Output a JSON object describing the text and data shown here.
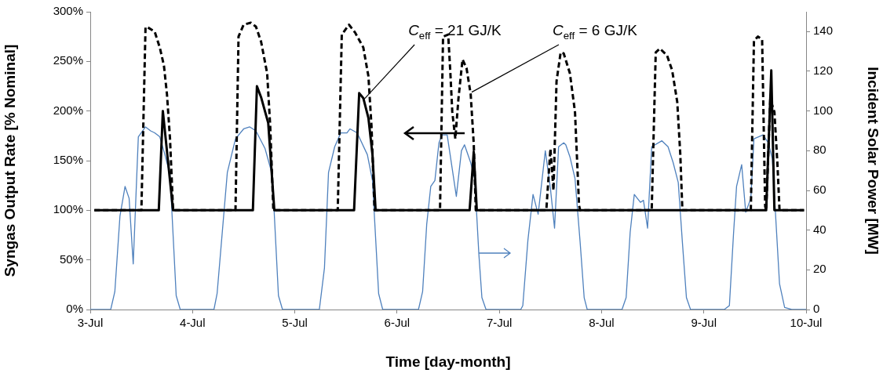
{
  "chart_data": {
    "type": "line",
    "xlabel": "Time [day-month]",
    "ylabel": "Syngas Output Rate [% Nominal]",
    "y2label": "Incident Solar Power [MW]",
    "xlim": [
      "--07-03",
      "--07-10"
    ],
    "xticks": [
      {
        "value": "--07-03",
        "label": "3-Jul"
      },
      {
        "value": "--07-04",
        "label": "4-Jul"
      },
      {
        "value": "--07-05",
        "label": "5-Jul"
      },
      {
        "value": "--07-06",
        "label": "6-Jul"
      },
      {
        "value": "--07-07",
        "label": "7-Jul"
      },
      {
        "value": "--07-08",
        "label": "8-Jul"
      },
      {
        "value": "--07-09",
        "label": "9-Jul"
      },
      {
        "value": "--07-10",
        "label": "10-Jul"
      }
    ],
    "ylim": [
      0,
      300
    ],
    "yticks": [
      {
        "value": 0,
        "label": "0%"
      },
      {
        "value": 50,
        "label": "50%"
      },
      {
        "value": 100,
        "label": "100%"
      },
      {
        "value": 150,
        "label": "150%"
      },
      {
        "value": 200,
        "label": "200%"
      },
      {
        "value": 250,
        "label": "250%"
      },
      {
        "value": 300,
        "label": "300%"
      }
    ],
    "y2lim": [
      0,
      150
    ],
    "y2ticks": [
      0,
      20,
      40,
      60,
      80,
      100,
      120,
      140
    ],
    "grid": false,
    "legend": false,
    "marker": "none",
    "series": [
      {
        "color": "#4f81bd",
        "axis": "y2",
        "line_style": "solid",
        "x": [
          "--07-03T00:00",
          "--07-03T04:48",
          "--07-03T05:46",
          "--07-03T06:58",
          "--07-03T08:10",
          "--07-03T09:07",
          "--07-03T10:05",
          "--07-03T11:17",
          "--07-03T12:58",
          "--07-03T14:10",
          "--07-03T15:07",
          "--07-03T16:19",
          "--07-03T17:31",
          "--07-03T18:43",
          "--07-03T20:10",
          "--07-03T21:07",
          "--07-04T05:02",
          "--07-04T05:46",
          "--07-04T08:10",
          "--07-04T10:05",
          "--07-04T12:00",
          "--07-04T13:26",
          "--07-04T14:53",
          "--07-04T17:02",
          "--07-04T18:43",
          "--07-04T20:10",
          "--07-04T21:07",
          "--07-05T05:46",
          "--07-05T06:58",
          "--07-05T07:55",
          "--07-05T09:22",
          "--07-05T10:48",
          "--07-05T12:14",
          "--07-05T12:58",
          "--07-05T14:38",
          "--07-05T17:02",
          "--07-05T18:14",
          "--07-05T19:41",
          "--07-05T20:38",
          "--07-06T05:02",
          "--07-06T06:00",
          "--07-06T06:58",
          "--07-06T07:55",
          "--07-06T08:53",
          "--07-06T09:50",
          "--07-06T10:34",
          "--07-06T11:46",
          "--07-06T13:55",
          "--07-06T15:07",
          "--07-06T15:50",
          "--07-06T17:17",
          "--07-06T18:14",
          "--07-06T19:12",
          "--07-06T19:55",
          "--07-06T20:53",
          "--07-07T05:02",
          "--07-07T05:31",
          "--07-07T06:43",
          "--07-07T07:55",
          "--07-07T09:07",
          "--07-07T10:48",
          "--07-07T12:00",
          "--07-07T12:58",
          "--07-07T13:55",
          "--07-07T15:07",
          "--07-07T15:36",
          "--07-07T16:34",
          "--07-07T17:46",
          "--07-07T18:58",
          "--07-07T19:55",
          "--07-07T20:38",
          "--07-08T04:48",
          "--07-08T05:46",
          "--07-08T06:43",
          "--07-08T07:41",
          "--07-08T09:07",
          "--07-08T09:50",
          "--07-08T10:48",
          "--07-08T11:46",
          "--07-08T14:10",
          "--07-08T15:36",
          "--07-08T16:48",
          "--07-08T18:00",
          "--07-08T18:58",
          "--07-08T19:55",
          "--07-08T20:53",
          "--07-09T04:48",
          "--07-09T06:00",
          "--07-09T06:58",
          "--07-09T07:41",
          "--07-09T08:53",
          "--07-09T09:50",
          "--07-09T11:02",
          "--07-09T11:46",
          "--07-09T13:55",
          "--07-09T15:07",
          "--07-09T16:05",
          "--07-09T17:46",
          "--07-09T18:58",
          "--07-09T20:38",
          "--07-10T00:00"
        ],
        "values": [
          0,
          0,
          9,
          47,
          62,
          56,
          23,
          87,
          92,
          90,
          89,
          87,
          78,
          68,
          7,
          0,
          0,
          8,
          69,
          86,
          91,
          92,
          90,
          81,
          68,
          7,
          0,
          0,
          21,
          69,
          82,
          89,
          89,
          91,
          89,
          78,
          65,
          8,
          0,
          0,
          9,
          43,
          62,
          65,
          84,
          88,
          88,
          57,
          80,
          83,
          74,
          66,
          28,
          6,
          0,
          0,
          2,
          35,
          58,
          48,
          80,
          61,
          41,
          82,
          84,
          83,
          77,
          66,
          34,
          6,
          0,
          0,
          6,
          39,
          58,
          54,
          55,
          41,
          82,
          85,
          82,
          74,
          64,
          34,
          6,
          0,
          0,
          2,
          38,
          62,
          73,
          49,
          56,
          86,
          88,
          84,
          76,
          13,
          1,
          0,
          0
        ]
      },
      {
        "color": "#000000",
        "line_style": "dashed",
        "x": [
          "--07-03T00:58",
          "--07-03T12:00",
          "--07-03T12:58",
          "--07-03T13:12",
          "--07-03T15:07",
          "--07-03T16:19",
          "--07-03T17:17",
          "--07-03T18:00",
          "--07-03T18:43",
          "--07-03T19:26",
          "--07-04T10:05",
          "--07-04T10:48",
          "--07-04T12:00",
          "--07-04T13:41",
          "--07-04T14:53",
          "--07-04T16:05",
          "--07-04T17:31",
          "--07-04T18:14",
          "--07-04T18:58",
          "--07-05T10:05",
          "--07-05T11:02",
          "--07-05T12:43",
          "--07-05T14:10",
          "--07-05T16:05",
          "--07-05T17:17",
          "--07-05T18:00",
          "--07-05T18:43",
          "--07-06T10:05",
          "--07-06T10:48",
          "--07-06T12:00",
          "--07-06T12:29",
          "--07-06T12:58",
          "--07-06T13:41",
          "--07-06T14:24",
          "--07-06T15:22",
          "--07-06T16:19",
          "--07-06T17:17",
          "--07-06T18:00",
          "--07-06T18:29",
          "--07-07T11:02",
          "--07-07T12:00",
          "--07-07T12:43",
          "--07-07T13:26",
          "--07-07T14:24",
          "--07-07T15:07",
          "--07-07T16:34",
          "--07-07T17:46",
          "--07-07T18:43",
          "--07-07T18:58",
          "--07-08T11:46",
          "--07-08T12:43",
          "--07-08T13:41",
          "--07-08T15:22",
          "--07-08T16:34",
          "--07-08T17:46",
          "--07-08T18:29",
          "--07-08T18:58",
          "--07-09T11:02",
          "--07-09T11:46",
          "--07-09T12:43",
          "--07-09T13:41",
          "--07-09T14:24",
          "--07-09T14:38",
          "--07-09T15:36",
          "--07-09T16:34",
          "--07-09T17:17",
          "--07-09T17:46",
          "--07-09T23:31"
        ],
        "values": [
          100,
          100,
          284,
          285,
          280,
          264,
          246,
          217,
          172,
          100,
          100,
          275,
          287,
          289,
          285,
          270,
          238,
          185,
          100,
          100,
          277,
          287,
          279,
          264,
          235,
          185,
          100,
          100,
          275,
          277,
          241,
          199,
          172,
          212,
          252,
          243,
          217,
          167,
          100,
          100,
          162,
          120,
          230,
          259,
          258,
          238,
          199,
          105,
          100,
          100,
          259,
          263,
          256,
          241,
          209,
          156,
          100,
          100,
          271,
          275,
          272,
          104,
          100,
          212,
          199,
          146,
          100,
          100
        ]
      },
      {
        "color": "#000000",
        "line_style": "solid",
        "x": [
          "--07-03T00:58",
          "--07-03T16:05",
          "--07-03T17:02",
          "--07-03T19:26",
          "--07-04T14:10",
          "--07-04T15:07",
          "--07-04T16:05",
          "--07-04T17:46",
          "--07-04T19:12",
          "--07-05T13:55",
          "--07-05T15:07",
          "--07-05T16:05",
          "--07-05T17:17",
          "--07-05T18:14",
          "--07-05T18:58",
          "--07-06T17:02",
          "--07-06T18:00",
          "--07-06T18:43",
          "--07-09T14:38",
          "--07-09T15:50",
          "--07-09T16:34",
          "--07-09T23:31"
        ],
        "values": [
          100,
          100,
          200,
          100,
          100,
          225,
          214,
          188,
          100,
          100,
          218,
          213,
          193,
          156,
          100,
          100,
          159,
          100,
          100,
          241,
          100,
          100
        ]
      }
    ],
    "annotations": [
      {
        "text": "C$_{eff}$ = 21 GJ/K",
        "x": "--07-05T16:19",
        "y": 212
      },
      {
        "text": "C$_{eff}$ = 6 GJ/K",
        "x": "--07-06T17:31",
        "y": 219
      }
    ]
  }
}
